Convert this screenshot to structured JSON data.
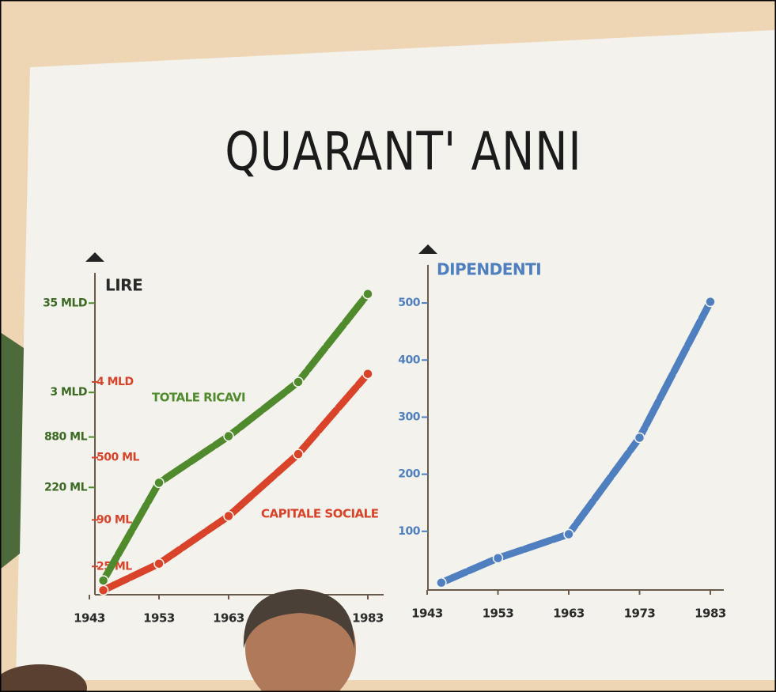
{
  "title": "QUARANT' ANNI",
  "chart_data": [
    {
      "type": "line",
      "y_label": "LIRE",
      "log_scale": true,
      "grid": false,
      "x": [
        1945,
        1953,
        1963,
        1973,
        1983
      ],
      "xlim": [
        1943,
        1983
      ],
      "xticks": [
        1943,
        1953,
        1963,
        1983
      ],
      "ylim": [
        12,
        100000
      ],
      "yticks": [
        {
          "value": 35000,
          "label": "35 MLD"
        },
        {
          "value": 3000,
          "label": "3 MLD"
        },
        {
          "value": 880,
          "label": "880 ML"
        },
        {
          "value": 220,
          "label": "220 ML"
        }
      ],
      "y2lim": [
        12,
        100000
      ],
      "y2ticks": [
        {
          "value": 4000,
          "label": "4 MLD"
        },
        {
          "value": 500,
          "label": "500 ML"
        },
        {
          "value": 90,
          "label": "90 ML"
        },
        {
          "value": 25,
          "label": "25 ML"
        }
      ],
      "series": [
        {
          "name": "TOTALE RICAVI",
          "color": "#4f8a2c",
          "values": [
            17,
            250,
            900,
            4000,
            45000
          ]
        },
        {
          "name": "CAPITALE SOCIALE",
          "color": "#d8432a",
          "axis": "y2",
          "values": [
            13,
            27,
            100,
            550,
            5000
          ]
        }
      ]
    },
    {
      "type": "line",
      "y_label": "DIPENDENTI",
      "log_scale": false,
      "grid": false,
      "x": [
        1945,
        1953,
        1963,
        1973,
        1983
      ],
      "xlim": [
        1943,
        1983
      ],
      "xticks": [
        1943,
        1953,
        1963,
        1973,
        1983
      ],
      "ylim": [
        0,
        550
      ],
      "yticks": [
        100,
        200,
        300,
        400,
        500
      ],
      "series": [
        {
          "name": "DIPENDENTI",
          "color": "#4f7fbf",
          "values": [
            10,
            53,
            95,
            264,
            502
          ]
        }
      ]
    }
  ]
}
